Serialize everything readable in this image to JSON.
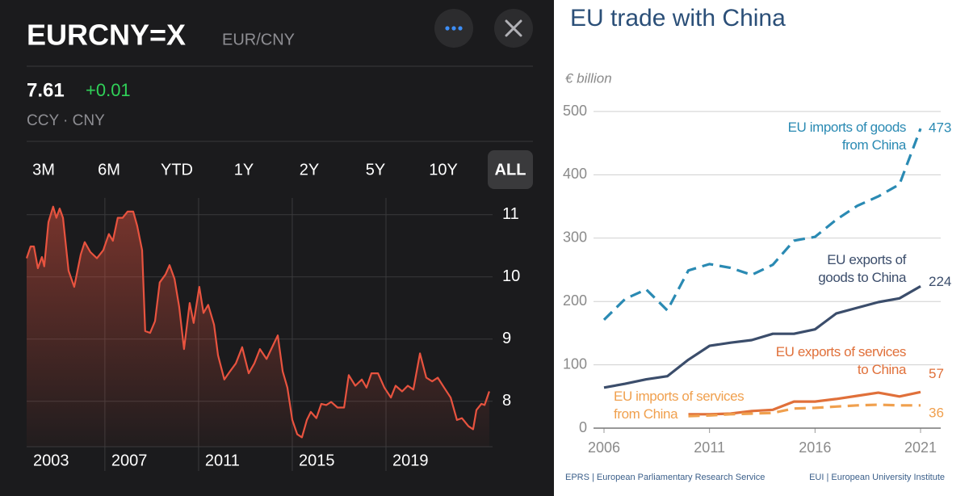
{
  "app": {
    "symbol": "EURCNY=X",
    "pair": "EUR/CNY",
    "price": "7.61",
    "change": "+0.01",
    "exchange": "CCY · CNY",
    "ranges": [
      "3M",
      "6M",
      "YTD",
      "1Y",
      "2Y",
      "5Y",
      "10Y",
      "ALL"
    ],
    "selected_range": "ALL"
  },
  "chart_data": [
    {
      "type": "line",
      "y_axis": "right",
      "grid": true,
      "area": true,
      "x": [
        2003.66,
        2003.83,
        2003.97,
        2004.14,
        2004.31,
        2004.41,
        2004.59,
        2004.79,
        2004.93,
        2005.07,
        2005.21,
        2005.45,
        2005.69,
        2005.97,
        2006.14,
        2006.38,
        2006.66,
        2006.93,
        2007.17,
        2007.34,
        2007.55,
        2007.76,
        2007.97,
        2008.21,
        2008.38,
        2008.59,
        2008.72,
        2008.93,
        2009.14,
        2009.34,
        2009.59,
        2009.76,
        2009.97,
        2010.17,
        2010.38,
        2010.62,
        2010.79,
        2011.03,
        2011.21,
        2011.41,
        2011.66,
        2011.83,
        2012.1,
        2012.34,
        2012.59,
        2012.86,
        2013.14,
        2013.38,
        2013.62,
        2013.9,
        2014.1,
        2014.38,
        2014.59,
        2014.79,
        2015.0,
        2015.21,
        2015.41,
        2015.62,
        2015.79,
        2016.03,
        2016.24,
        2016.45,
        2016.66,
        2016.93,
        2017.21,
        2017.41,
        2017.69,
        2017.97,
        2018.17,
        2018.38,
        2018.66,
        2018.93,
        2019.21,
        2019.41,
        2019.69,
        2019.93,
        2020.17,
        2020.45,
        2020.72,
        2020.97,
        2021.21,
        2021.48,
        2021.76,
        2022.03,
        2022.24,
        2022.52,
        2022.72,
        2022.86,
        2023.07,
        2023.21,
        2023.41
      ],
      "series": [
        {
          "color": "#e8533f",
          "values": [
            10.3,
            10.49,
            10.49,
            10.14,
            10.32,
            10.17,
            10.88,
            11.13,
            10.95,
            11.1,
            10.95,
            10.1,
            9.84,
            10.36,
            10.56,
            10.4,
            10.3,
            10.43,
            10.69,
            10.58,
            10.95,
            10.95,
            11.05,
            11.05,
            10.82,
            10.43,
            9.13,
            9.1,
            9.29,
            9.91,
            10.04,
            10.19,
            9.97,
            9.52,
            8.84,
            9.58,
            9.26,
            9.84,
            9.42,
            9.55,
            9.23,
            8.74,
            8.35,
            8.48,
            8.61,
            8.87,
            8.45,
            8.61,
            8.84,
            8.68,
            8.84,
            9.06,
            8.48,
            8.22,
            7.7,
            7.47,
            7.42,
            7.7,
            7.83,
            7.73,
            7.96,
            7.94,
            7.99,
            7.9,
            7.9,
            8.42,
            8.25,
            8.35,
            8.22,
            8.45,
            8.45,
            8.22,
            8.06,
            8.25,
            8.16,
            8.25,
            8.19,
            8.77,
            8.38,
            8.32,
            8.38,
            8.22,
            8.06,
            7.7,
            7.73,
            7.6,
            7.55,
            7.86,
            7.96,
            7.94,
            8.16
          ]
        }
      ],
      "xlim": [
        2003.66,
        2023.55
      ],
      "ylim": [
        7.27,
        11.27
      ],
      "xticks": [
        2003,
        2007,
        2011,
        2015,
        2019
      ],
      "yticks": [
        8,
        9,
        10,
        11
      ]
    },
    {
      "type": "line",
      "y_axis": "left",
      "grid": true,
      "area": false,
      "title": "EU trade with China",
      "y_label": "€ billion",
      "sources": [
        "EPRS | European Parliamentary Research Service",
        "EUI | European University Institute"
      ],
      "x": [
        2006,
        2007,
        2008,
        2009,
        2010,
        2011,
        2012,
        2013,
        2014,
        2015,
        2016,
        2017,
        2018,
        2019,
        2020,
        2021
      ],
      "series": [
        {
          "name": "EU imports of goods from China",
          "color": "#2a8ab3",
          "dashed": true,
          "values": [
            171,
            204,
            219,
            186,
            249,
            259,
            253,
            242,
            258,
            296,
            302,
            329,
            351,
            366,
            385,
            473
          ]
        },
        {
          "name": "EU exports of goods to China",
          "color": "#3b4d6b",
          "dashed": false,
          "values": [
            64,
            70,
            77,
            82,
            108,
            130,
            135,
            139,
            149,
            149,
            156,
            181,
            190,
            199,
            205,
            224
          ]
        },
        {
          "name": "EU exports of services to China",
          "color": "#e0703a",
          "dashed": false,
          "values": [
            null,
            null,
            null,
            null,
            22,
            22,
            23,
            27,
            29,
            42,
            42,
            46,
            51,
            56,
            50,
            57
          ]
        },
        {
          "name": "EU imports of services from China",
          "color": "#f0a04e",
          "dashed": true,
          "values": [
            null,
            null,
            null,
            null,
            19,
            20,
            22,
            23,
            24,
            31,
            32,
            34,
            36,
            37,
            36,
            36
          ]
        }
      ],
      "xlim": [
        2006,
        2021
      ],
      "ylim": [
        0,
        500
      ],
      "xticks": [
        2006,
        2011,
        2016,
        2021
      ],
      "yticks": [
        0,
        100,
        200,
        300,
        400,
        500
      ]
    }
  ]
}
